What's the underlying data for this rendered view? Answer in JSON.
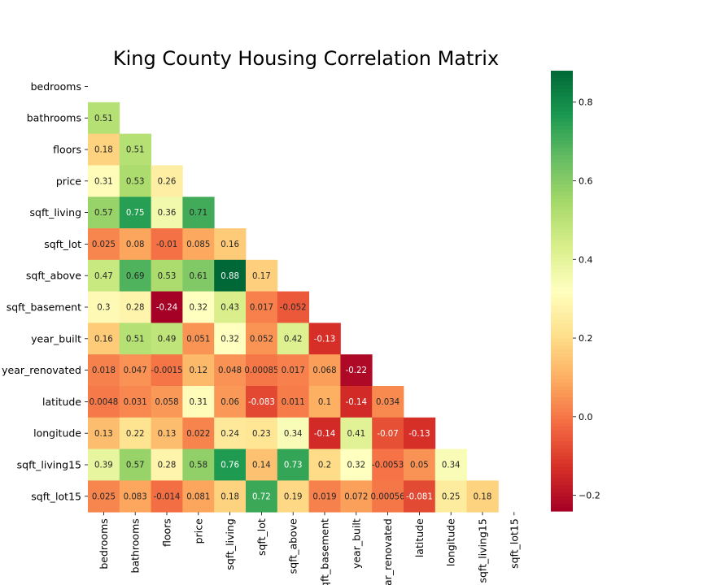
{
  "chart_data": {
    "type": "heatmap",
    "title": "King County Housing Correlation Matrix",
    "mask": "upper-triangle-including-diagonal",
    "colormap": "RdYlGn",
    "vmin": -0.24,
    "vmax": 0.88,
    "row_labels": [
      "bedrooms",
      "bathrooms",
      "floors",
      "price",
      "sqft_living",
      "sqft_lot",
      "sqft_above",
      "sqft_basement",
      "year_built",
      "year_renovated",
      "latitude",
      "longitude",
      "sqft_living15",
      "sqft_lot15"
    ],
    "col_labels": [
      "bedrooms",
      "bathrooms",
      "floors",
      "price",
      "sqft_living",
      "sqft_lot",
      "sqft_above",
      "sqft_basement",
      "year_built",
      "year_renovated",
      "latitude",
      "longitude",
      "sqft_living15",
      "sqft_lot15"
    ],
    "lower_triangle_values": [
      [],
      [
        "0.51"
      ],
      [
        "0.18",
        "0.51"
      ],
      [
        "0.31",
        "0.53",
        "0.26"
      ],
      [
        "0.57",
        "0.75",
        "0.36",
        "0.71"
      ],
      [
        "0.025",
        "0.08",
        "-0.01",
        "0.085",
        "0.16"
      ],
      [
        "0.47",
        "0.69",
        "0.53",
        "0.61",
        "0.88",
        "0.17"
      ],
      [
        "0.3",
        "0.28",
        "-0.24",
        "0.32",
        "0.43",
        "0.017",
        "-0.052"
      ],
      [
        "0.16",
        "0.51",
        "0.49",
        "0.051",
        "0.32",
        "0.052",
        "0.42",
        "-0.13"
      ],
      [
        "0.018",
        "0.047",
        "-0.0015",
        "0.12",
        "0.048",
        "0.00085",
        "0.017",
        "0.068",
        "-0.22"
      ],
      [
        "0.0048",
        "0.031",
        "0.058",
        "0.31",
        "0.06",
        "-0.083",
        "0.011",
        "0.1",
        "-0.14",
        "0.034"
      ],
      [
        "0.13",
        "0.22",
        "0.13",
        "0.022",
        "0.24",
        "0.23",
        "0.34",
        "-0.14",
        "0.41",
        "-0.07",
        "-0.13"
      ],
      [
        "0.39",
        "0.57",
        "0.28",
        "0.58",
        "0.76",
        "0.14",
        "0.73",
        "0.2",
        "0.32",
        "-0.0053",
        "0.05",
        "0.34"
      ],
      [
        "0.025",
        "0.083",
        "-0.014",
        "0.081",
        "0.18",
        "0.72",
        "0.19",
        "0.019",
        "0.072",
        "0.00056",
        "-0.081",
        "0.25",
        "0.18"
      ]
    ],
    "colorbar": {
      "ticks": [
        0.8,
        0.6,
        0.4,
        0.2,
        0.0,
        -0.2
      ],
      "tick_labels": [
        "0.8",
        "0.6",
        "0.4",
        "0.2",
        "0.0",
        "−0.2"
      ]
    }
  }
}
